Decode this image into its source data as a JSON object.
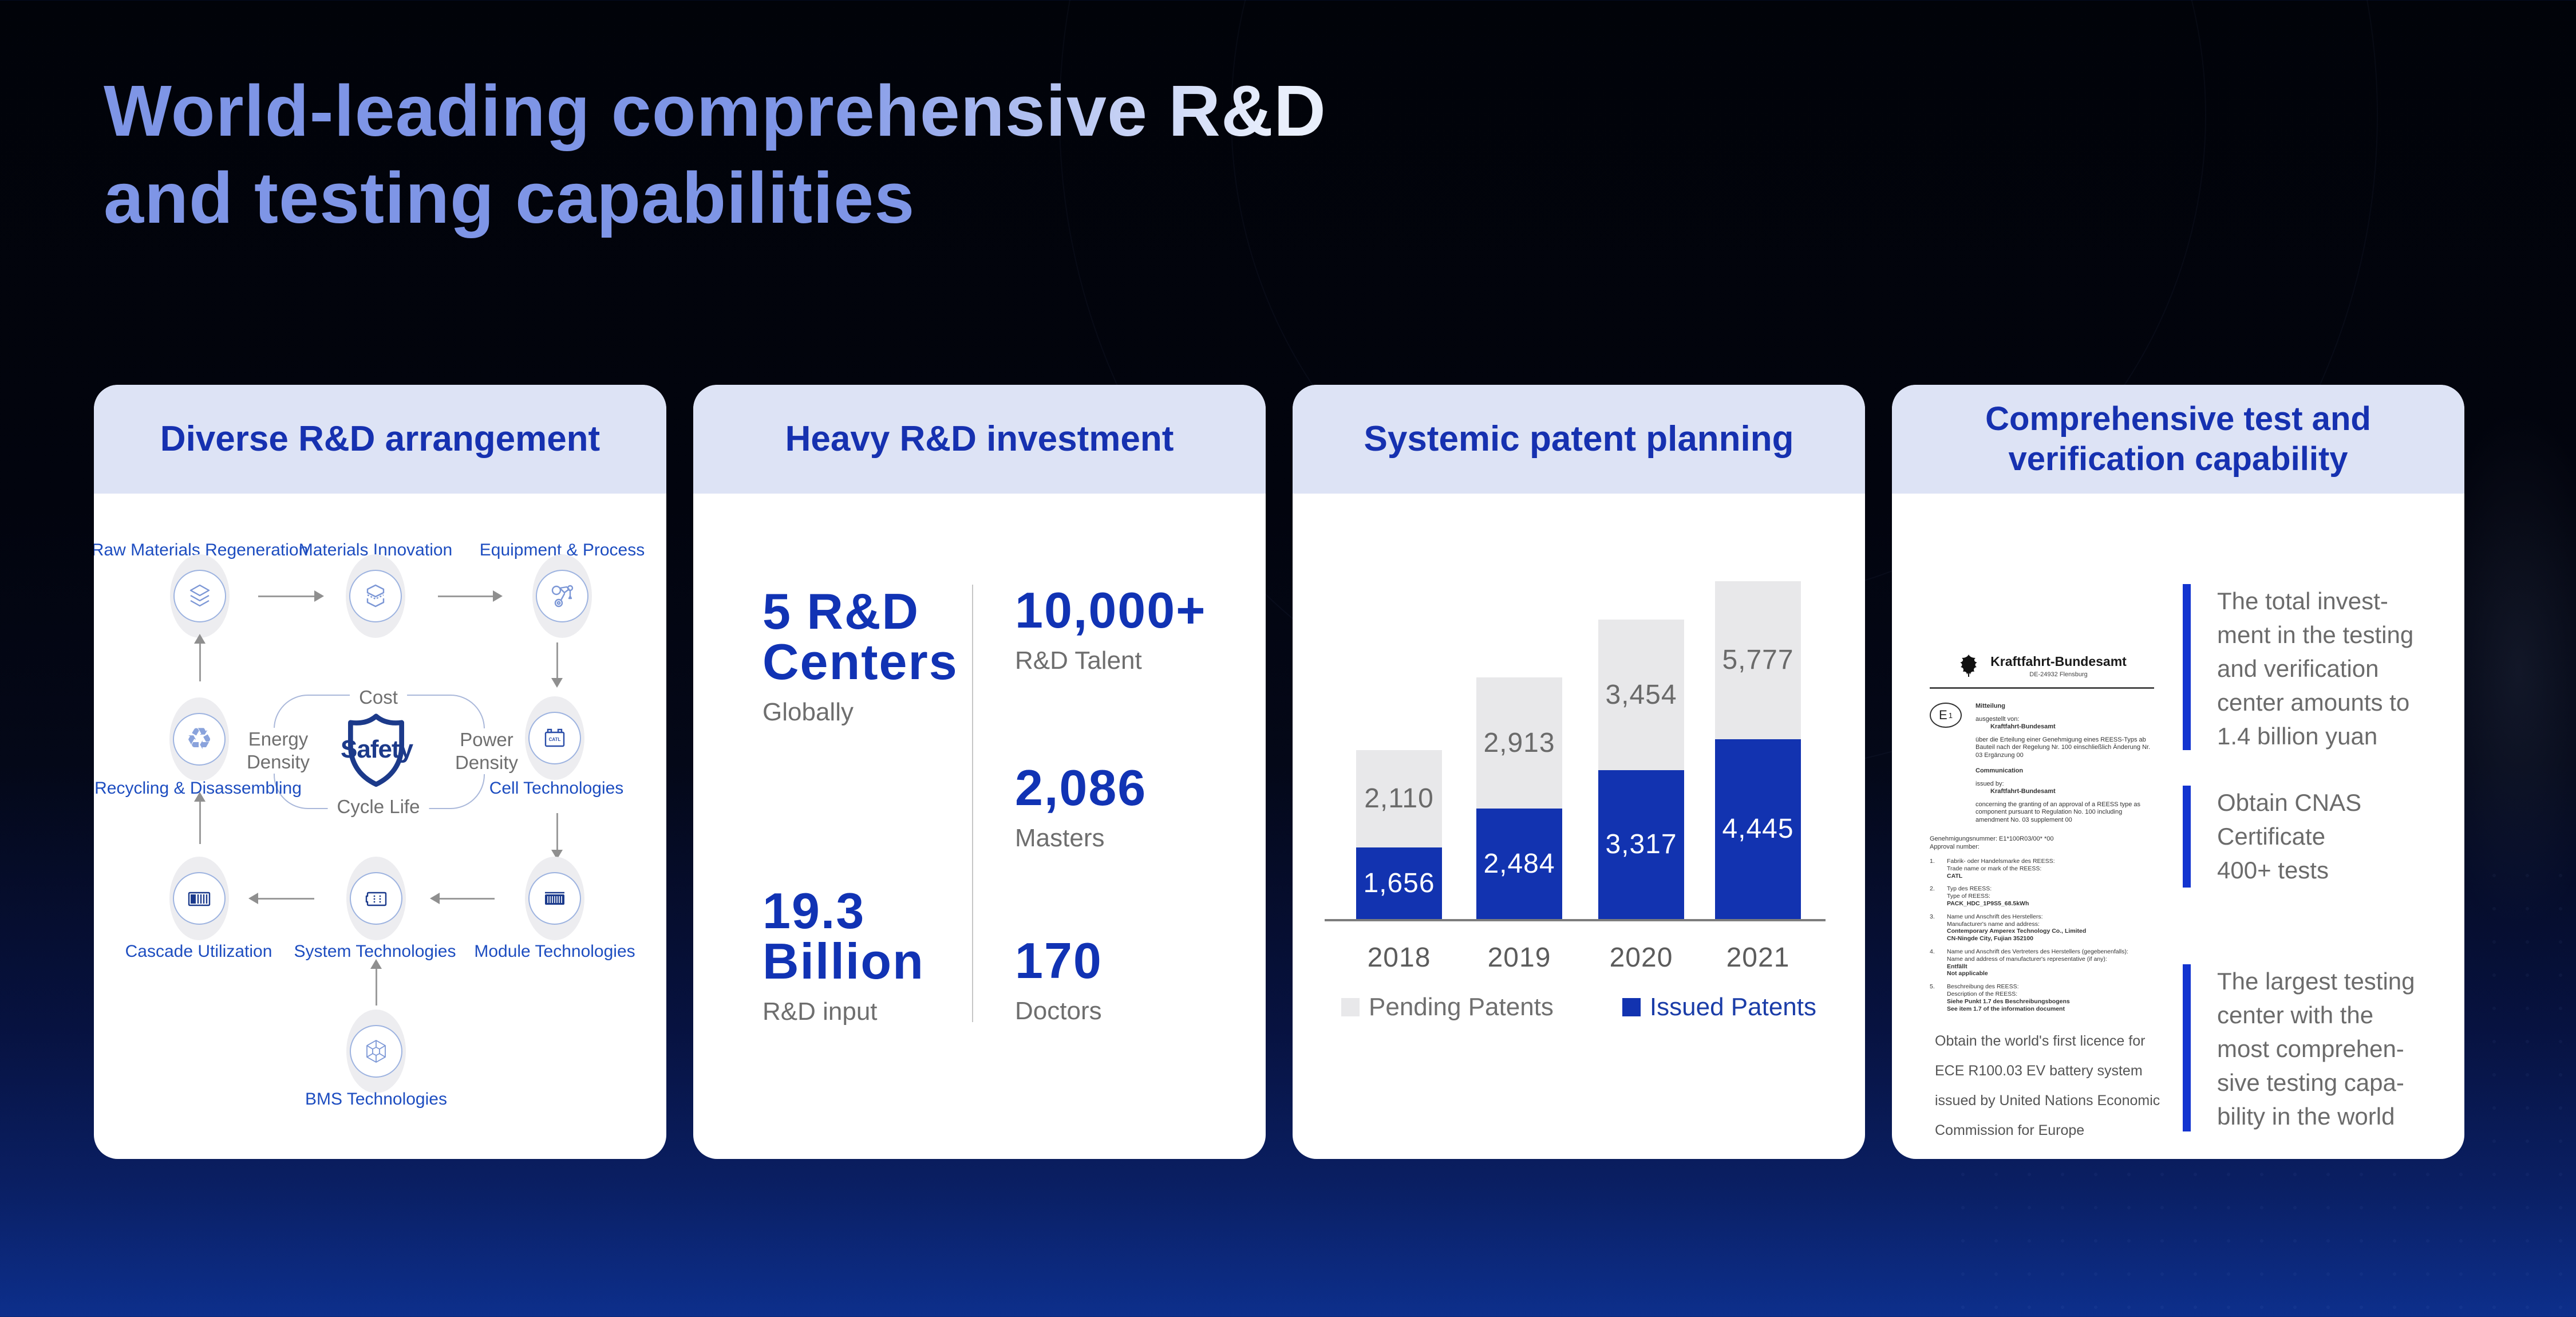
{
  "title": {
    "line1": "World-leading comprehensive R&D",
    "line2": "and testing capabilities"
  },
  "colors": {
    "title_blue": "#7e95e6",
    "header_bg": "#dde3f5",
    "header_text": "#1631b0",
    "accent_blue": "#1133b4",
    "bar_blue": "#1233b0",
    "bar_gray": "#e8e8ea",
    "diagram_label_blue": "#1d4dc0",
    "gray_text": "#6e6e6e",
    "highlight_bar_blue": "#1334d0"
  },
  "cards": {
    "arrangement": {
      "title": "Diverse R&D arrangement",
      "nodes": {
        "raw": "Raw Materials Regeneration",
        "materials": "Materials Innovation",
        "equipment": "Equipment & Process",
        "recycling": "Recycling & Disassembling",
        "cell": "Cell Technologies",
        "cascade": "Cascade Utilization",
        "system": "System Technologies",
        "module": "Module Technologies",
        "bms": "BMS Technologies"
      },
      "shield": {
        "center": "Safety",
        "top": "Cost",
        "left_line1": "Energy",
        "left_line2": "Density",
        "right_line1": "Power",
        "right_line2": "Density",
        "bottom": "Cycle Life"
      },
      "cell_icon_text": "CATL"
    },
    "investment": {
      "title": "Heavy R&D investment",
      "stats": {
        "centers": {
          "value1": "5 R&D",
          "value2": "Centers",
          "label": "Globally"
        },
        "talent": {
          "value1": "10,000+",
          "label": "R&D Talent"
        },
        "masters": {
          "value1": "2,086",
          "label": "Masters"
        },
        "input": {
          "value1": "19.3",
          "value2": "Billion",
          "label": "R&D input"
        },
        "doctors": {
          "value1": "170",
          "label": "Doctors"
        }
      }
    },
    "patents": {
      "title": "Systemic patent planning",
      "legend": {
        "pending": "Pending Patents",
        "issued": "Issued Patents"
      }
    },
    "testing": {
      "title_line1": "Comprehensive test and",
      "title_line2": "verification capability",
      "certificate": {
        "authority": "Kraftfahrt-Bundesamt",
        "authority_sub": "DE-24932 Flensburg",
        "e_mark": "E",
        "e_mark_num": "1",
        "de_heading": "Mitteilung",
        "de_issued": "ausgestellt von:",
        "de_issuer": "Kraftfahrt-Bundesamt",
        "de_body": "über die Erteilung einer Genehmigung eines REESS-Typs ab Bauteil nach der Regelung Nr. 100 einschließlich Änderung Nr. 03 Ergänzung 00",
        "en_heading": "Communication",
        "en_issued": "issued by:",
        "en_issuer": "Kraftfahrt-Bundesamt",
        "en_body": "concerning the granting of an approval of a REESS type as component pursuant to Regulation No. 100 including amendment No. 03 supplement 00",
        "approval_de": "Genehmigungsnummer: E1*100R03/00*        *00",
        "approval_en": "Approval number:",
        "items": [
          {
            "no": "1.",
            "de": "Fabrik- oder Handelsmarke des REESS:",
            "en": "Trade name or mark of the REESS:",
            "values": [
              "CATL"
            ]
          },
          {
            "no": "2.",
            "de": "Typ des REESS:",
            "en": "Type of REESS:",
            "values": [
              "PACK_HDC_1P9S5_68.5kWh"
            ]
          },
          {
            "no": "3.",
            "de": "Name und Anschrift des Herstellers:",
            "en": "Manufacturer's name and address:",
            "values": [
              "Contemporary Amperex Technology Co., Limited",
              "CN-Ningde City, Fujian 352100"
            ]
          },
          {
            "no": "4.",
            "de": "Name und Anschrift des Vertreters des Herstellers (gegebenenfalls):",
            "en": "Name and address of manufacturer's representative (if any):",
            "values": [
              "Entfällt",
              "Not applicable"
            ]
          },
          {
            "no": "5.",
            "de": "Beschreibung des REESS:",
            "en": "Description of the REESS:",
            "values": [
              "Siehe Punkt 1.7 des Beschreibungsbogens",
              "See item 1.7 of the information document"
            ]
          }
        ]
      },
      "note_lines": [
        "Obtain the world's first licence for",
        "ECE R100.03 EV battery system",
        "issued by United Nations Economic",
        "Commission for Europe"
      ],
      "highlights": [
        {
          "lines": [
            "The total invest-",
            "ment in the testing",
            "and verification",
            "center amounts to",
            "1.4 billion yuan"
          ]
        },
        {
          "lines": [
            "Obtain CNAS",
            "Certificate",
            "400+ tests"
          ]
        },
        {
          "lines": [
            "The largest testing",
            "center with the",
            "most comprehen-",
            "sive testing capa-",
            "bility in the world"
          ]
        }
      ]
    }
  },
  "chart_data": {
    "type": "bar",
    "stacked": true,
    "title": "Systemic patent planning",
    "categories": [
      "2018",
      "2019",
      "2020",
      "2021"
    ],
    "series": [
      {
        "name": "Issued Patents",
        "color": "#1233b0",
        "values": [
          1656,
          2484,
          3317,
          4445
        ]
      },
      {
        "name": "Pending Patents",
        "color": "#e8e8ea",
        "values": [
          2110,
          2913,
          3454,
          5777
        ]
      }
    ],
    "value_labels": {
      "issued": [
        "1,656",
        "2,484",
        "3,317",
        "4,445"
      ],
      "pending": [
        "2,110",
        "2,913",
        "3,454",
        "5,777"
      ]
    },
    "xlabel": "",
    "ylabel": "",
    "grid": false,
    "legend_position": "bottom"
  }
}
